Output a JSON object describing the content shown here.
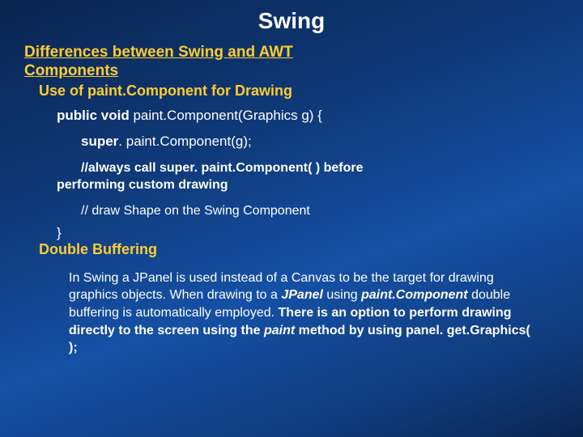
{
  "colors": {
    "background_gradient": [
      "#0a2550",
      "#0f3a7a",
      "#1550a5",
      "#0f3a7a",
      "#0a2550"
    ],
    "text": "#ffffff",
    "accent": "#ffcc33"
  },
  "typography": {
    "family": "Verdana",
    "title_size_pt": 28,
    "heading_size_pt": 19,
    "body_size_pt": 16
  },
  "title": "Swing",
  "heading_line1": "Differences between Swing and AWT",
  "heading_line2": "Components",
  "sub1": "Use of paint.Component for Drawing",
  "code": {
    "kw1": "public void",
    "sig": " paint.Component(Graphics g) {",
    "kw2": "super",
    "call": ". paint.Component(g);",
    "comment1_a": "//always call super. paint.Component( ) before",
    "comment1_b": "performing custom drawing",
    "comment2": "// draw Shape on the Swing Component",
    "close": "}"
  },
  "sub2": "Double Buffering",
  "para": {
    "p1": "In Swing a JPanel is used instead of a Canvas to be the target for drawing graphics objects.  When drawing to a ",
    "jpanel": "JPanel",
    "p2": " using ",
    "pc": "paint.Component",
    "p3": " double buffering is automatically employed.  ",
    "b1": "There is an option to perform drawing directly to the screen using the ",
    "paint": "paint",
    "b2": " method by using panel. get.Graphics( );"
  }
}
